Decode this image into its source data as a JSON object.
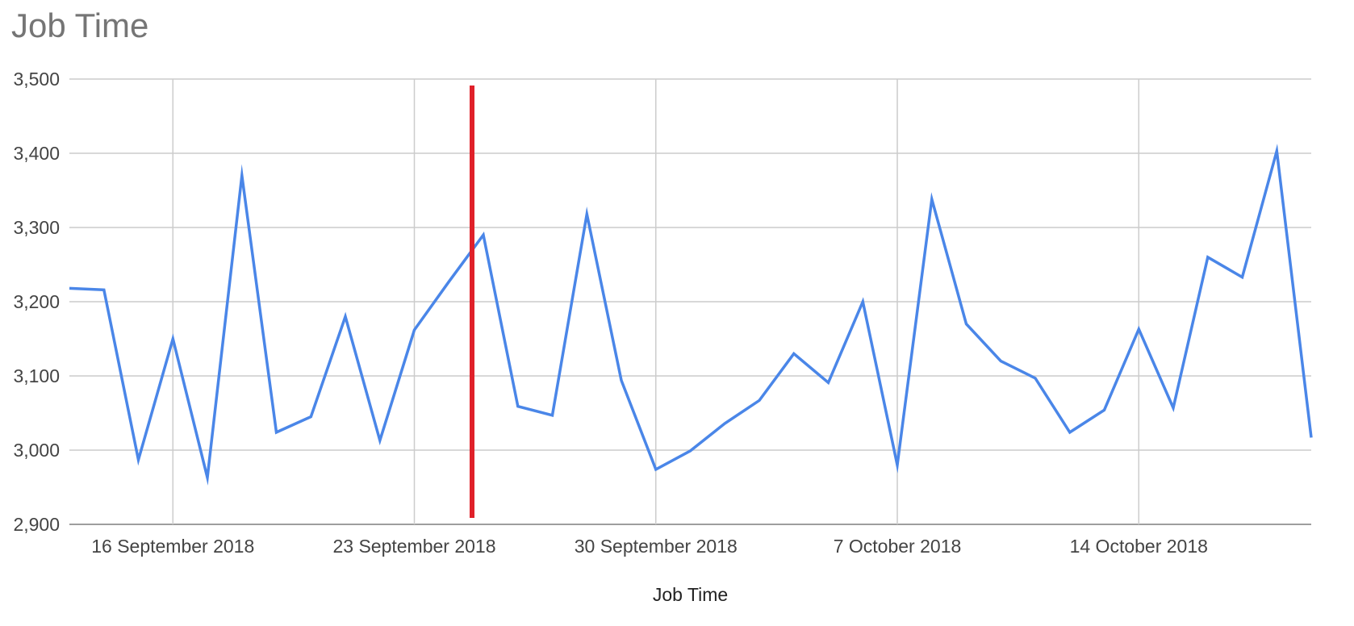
{
  "chart_data": {
    "type": "line",
    "title": "Job Time",
    "xlabel": "Job Time",
    "ylabel": "",
    "ylim": [
      2900,
      3500
    ],
    "y_ticks": [
      2900,
      3000,
      3100,
      3200,
      3300,
      3400,
      3500
    ],
    "y_tick_labels": [
      "2,900",
      "3,000",
      "3,100",
      "3,200",
      "3,300",
      "3,400",
      "3,500"
    ],
    "x_range": [
      "2018-09-13",
      "2018-10-19"
    ],
    "x_ticks": [
      "2018-09-16",
      "2018-09-23",
      "2018-09-30",
      "2018-10-07",
      "2018-10-14"
    ],
    "x_tick_labels": [
      "16 September 2018",
      "23 September 2018",
      "30 September 2018",
      "7 October 2018",
      "14 October 2018"
    ],
    "grid": true,
    "legend": "none",
    "series": [
      {
        "color": "#4a86e8",
        "x": [
          "2018-09-13",
          "2018-09-14",
          "2018-09-15",
          "2018-09-16",
          "2018-09-17",
          "2018-09-18",
          "2018-09-19",
          "2018-09-20",
          "2018-09-21",
          "2018-09-22",
          "2018-09-23",
          "2018-09-24",
          "2018-09-25",
          "2018-09-26",
          "2018-09-27",
          "2018-09-28",
          "2018-09-29",
          "2018-09-30",
          "2018-10-01",
          "2018-10-02",
          "2018-10-03",
          "2018-10-04",
          "2018-10-05",
          "2018-10-06",
          "2018-10-07",
          "2018-10-08",
          "2018-10-09",
          "2018-10-10",
          "2018-10-11",
          "2018-10-12",
          "2018-10-13",
          "2018-10-14",
          "2018-10-15",
          "2018-10-16",
          "2018-10-17",
          "2018-10-18",
          "2018-10-19"
        ],
        "values": [
          3218,
          3216,
          2987,
          3150,
          2963,
          3370,
          3024,
          3045,
          3180,
          3013,
          3162,
          3227,
          3290,
          3059,
          3047,
          3318,
          3094,
          2974,
          2999,
          3036,
          3067,
          3130,
          3091,
          3200,
          2980,
          3338,
          3170,
          3120,
          3097,
          3024,
          3054,
          3163,
          3057,
          3260,
          3233,
          3403,
          3017
        ]
      }
    ],
    "annotations": [
      {
        "type": "vertical-line",
        "x": "2018-09-25",
        "color": "#e0212a"
      }
    ]
  }
}
